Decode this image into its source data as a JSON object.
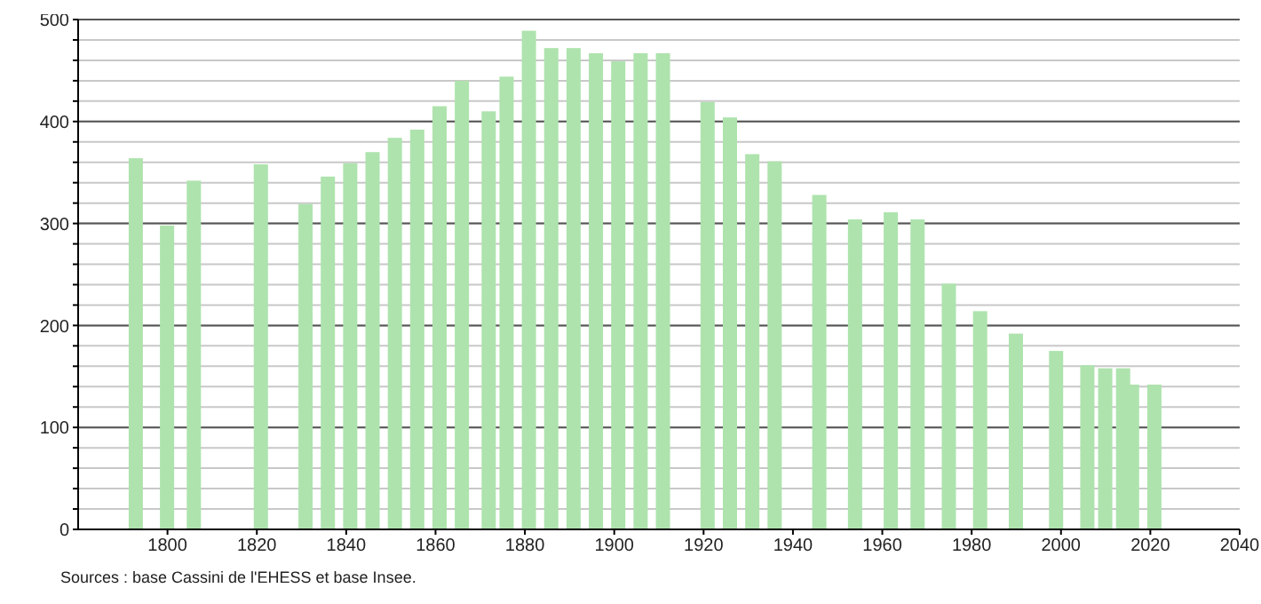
{
  "chart_data": {
    "type": "bar",
    "x": [
      1793,
      1800,
      1806,
      1821,
      1831,
      1836,
      1841,
      1846,
      1851,
      1856,
      1861,
      1866,
      1872,
      1876,
      1881,
      1886,
      1891,
      1896,
      1901,
      1906,
      1911,
      1921,
      1926,
      1931,
      1936,
      1946,
      1954,
      1962,
      1968,
      1975,
      1982,
      1990,
      1999,
      2006,
      2010,
      2014,
      2016,
      2021
    ],
    "values": [
      364,
      298,
      342,
      358,
      319,
      346,
      359,
      370,
      384,
      392,
      415,
      440,
      410,
      444,
      489,
      472,
      472,
      467,
      459,
      467,
      467,
      419,
      404,
      368,
      361,
      328,
      304,
      311,
      304,
      241,
      214,
      192,
      175,
      161,
      158,
      158,
      142,
      142
    ],
    "color": "#aee3ad",
    "xlim": [
      1780,
      2040
    ],
    "xticks": [
      1800,
      1820,
      1840,
      1860,
      1880,
      1900,
      1920,
      1940,
      1960,
      1980,
      2000,
      2020,
      2040
    ],
    "ylim": [
      0,
      500
    ],
    "yticks": [
      0,
      {
        "value": 20,
        "label": null
      },
      {
        "value": 40,
        "label": null
      },
      {
        "value": 60,
        "label": null
      },
      {
        "value": 80,
        "label": null
      },
      100,
      {
        "value": 120,
        "label": null
      },
      {
        "value": 140,
        "label": null
      },
      {
        "value": 160,
        "label": null
      },
      {
        "value": 180,
        "label": null
      },
      200,
      {
        "value": 220,
        "label": null
      },
      {
        "value": 240,
        "label": null
      },
      {
        "value": 260,
        "label": null
      },
      {
        "value": 280,
        "label": null
      },
      300,
      {
        "value": 320,
        "label": null
      },
      {
        "value": 340,
        "label": null
      },
      {
        "value": 360,
        "label": null
      },
      {
        "value": 380,
        "label": null
      },
      400,
      {
        "value": 420,
        "label": null
      },
      {
        "value": 440,
        "label": null
      },
      {
        "value": 460,
        "label": null
      },
      {
        "value": 480,
        "label": null
      },
      500
    ],
    "grid": "y",
    "annotations": [
      "Sources : base Cassini de l'EHESS et base Insee."
    ]
  }
}
